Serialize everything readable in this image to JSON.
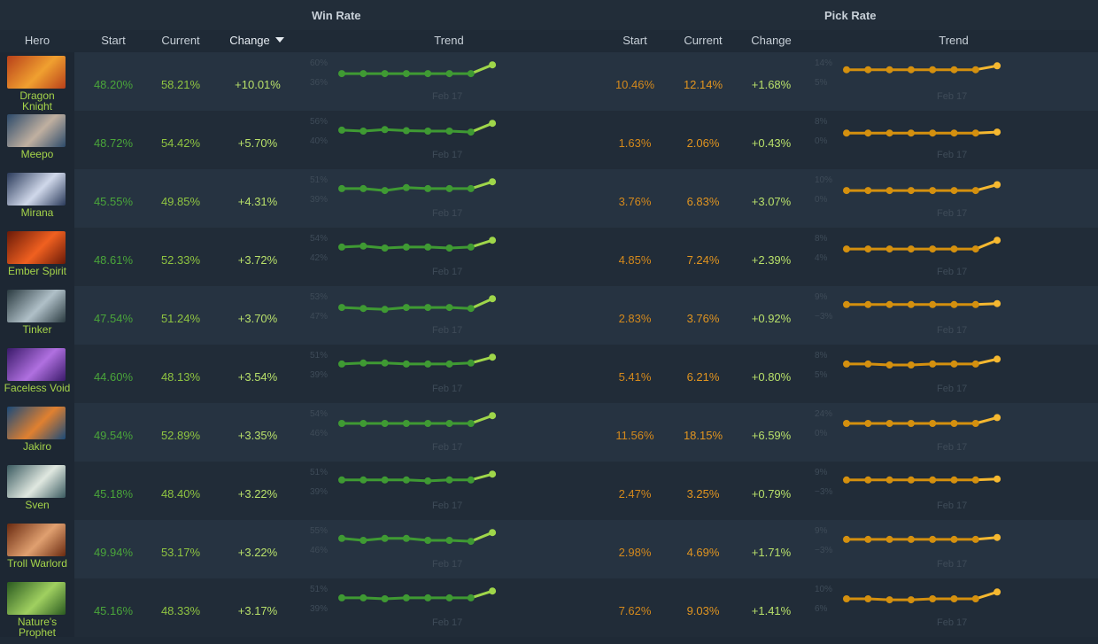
{
  "headers": {
    "group_win": "Win Rate",
    "group_pick": "Pick Rate",
    "hero": "Hero",
    "start": "Start",
    "current": "Current",
    "change": "Change",
    "trend": "Trend"
  },
  "colors": {
    "background": "#1f2a36",
    "win_line": "#3f9a33",
    "win_highlight": "#9fd64a",
    "pick_line": "#d4900f",
    "pick_highlight": "#f5b830",
    "positive_change": "#b8e06a"
  },
  "trend_date": "Feb 17",
  "rows": [
    {
      "hero": "Dragon Knight",
      "hero_lines": [
        "Dragon",
        "Knight"
      ],
      "icon": "dragon-knight-portrait",
      "win": {
        "start": "48.20%",
        "current": "58.21%",
        "change": "+10.01%",
        "max": "60%",
        "min": "36%",
        "points": [
          0.55,
          0.55,
          0.55,
          0.55,
          0.55,
          0.55,
          0.55,
          0.1
        ]
      },
      "pick": {
        "start": "10.46%",
        "current": "12.14%",
        "change": "+1.68%",
        "max": "14%",
        "min": "5%",
        "points": [
          0.35,
          0.35,
          0.35,
          0.35,
          0.35,
          0.35,
          0.35,
          0.15
        ]
      }
    },
    {
      "hero": "Meepo",
      "hero_lines": [
        "Meepo"
      ],
      "icon": "meepo-portrait",
      "win": {
        "start": "48.72%",
        "current": "54.42%",
        "change": "+5.70%",
        "max": "56%",
        "min": "40%",
        "points": [
          0.45,
          0.5,
          0.42,
          0.48,
          0.5,
          0.5,
          0.55,
          0.1
        ]
      },
      "pick": {
        "start": "1.63%",
        "current": "2.06%",
        "change": "+0.43%",
        "max": "8%",
        "min": "0%",
        "points": [
          0.6,
          0.6,
          0.6,
          0.6,
          0.6,
          0.6,
          0.6,
          0.55
        ]
      }
    },
    {
      "hero": "Mirana",
      "hero_lines": [
        "Mirana"
      ],
      "icon": "mirana-portrait",
      "win": {
        "start": "45.55%",
        "current": "49.85%",
        "change": "+4.31%",
        "max": "51%",
        "min": "39%",
        "points": [
          0.45,
          0.45,
          0.55,
          0.4,
          0.45,
          0.45,
          0.45,
          0.1
        ]
      },
      "pick": {
        "start": "3.76%",
        "current": "6.83%",
        "change": "+3.07%",
        "max": "10%",
        "min": "0%",
        "points": [
          0.55,
          0.55,
          0.55,
          0.55,
          0.55,
          0.55,
          0.55,
          0.25
        ]
      }
    },
    {
      "hero": "Ember Spirit",
      "hero_lines": [
        "Ember Spirit"
      ],
      "icon": "ember-spirit-portrait",
      "win": {
        "start": "48.61%",
        "current": "52.33%",
        "change": "+3.72%",
        "max": "54%",
        "min": "42%",
        "points": [
          0.45,
          0.4,
          0.5,
          0.45,
          0.45,
          0.5,
          0.45,
          0.1
        ]
      },
      "pick": {
        "start": "4.85%",
        "current": "7.24%",
        "change": "+2.39%",
        "max": "8%",
        "min": "4%",
        "points": [
          0.55,
          0.55,
          0.55,
          0.55,
          0.55,
          0.55,
          0.55,
          0.1
        ]
      }
    },
    {
      "hero": "Tinker",
      "hero_lines": [
        "Tinker"
      ],
      "icon": "tinker-portrait",
      "win": {
        "start": "47.54%",
        "current": "51.24%",
        "change": "+3.70%",
        "max": "53%",
        "min": "47%",
        "points": [
          0.55,
          0.6,
          0.65,
          0.55,
          0.55,
          0.55,
          0.6,
          0.1
        ]
      },
      "pick": {
        "start": "2.83%",
        "current": "3.76%",
        "change": "+0.92%",
        "max": "9%",
        "min": "−3%",
        "points": [
          0.4,
          0.4,
          0.4,
          0.4,
          0.4,
          0.4,
          0.4,
          0.35
        ]
      }
    },
    {
      "hero": "Faceless Void",
      "hero_lines": [
        "Faceless Void"
      ],
      "icon": "faceless-void-portrait",
      "win": {
        "start": "44.60%",
        "current": "48.13%",
        "change": "+3.54%",
        "max": "51%",
        "min": "39%",
        "points": [
          0.45,
          0.4,
          0.4,
          0.45,
          0.45,
          0.45,
          0.4,
          0.1
        ]
      },
      "pick": {
        "start": "5.41%",
        "current": "6.21%",
        "change": "+0.80%",
        "max": "8%",
        "min": "5%",
        "points": [
          0.45,
          0.45,
          0.5,
          0.5,
          0.45,
          0.45,
          0.45,
          0.2
        ]
      }
    },
    {
      "hero": "Jakiro",
      "hero_lines": [
        "Jakiro"
      ],
      "icon": "jakiro-portrait",
      "win": {
        "start": "49.54%",
        "current": "52.89%",
        "change": "+3.35%",
        "max": "54%",
        "min": "46%",
        "points": [
          0.5,
          0.5,
          0.5,
          0.5,
          0.5,
          0.5,
          0.5,
          0.1
        ]
      },
      "pick": {
        "start": "11.56%",
        "current": "18.15%",
        "change": "+6.59%",
        "max": "24%",
        "min": "0%",
        "points": [
          0.5,
          0.5,
          0.5,
          0.5,
          0.5,
          0.5,
          0.5,
          0.2
        ]
      }
    },
    {
      "hero": "Sven",
      "hero_lines": [
        "Sven"
      ],
      "icon": "sven-portrait",
      "win": {
        "start": "45.18%",
        "current": "48.40%",
        "change": "+3.22%",
        "max": "51%",
        "min": "39%",
        "points": [
          0.4,
          0.4,
          0.4,
          0.4,
          0.45,
          0.4,
          0.4,
          0.1
        ]
      },
      "pick": {
        "start": "2.47%",
        "current": "3.25%",
        "change": "+0.79%",
        "max": "9%",
        "min": "−3%",
        "points": [
          0.4,
          0.4,
          0.4,
          0.4,
          0.4,
          0.4,
          0.4,
          0.35
        ]
      }
    },
    {
      "hero": "Troll Warlord",
      "hero_lines": [
        "Troll Warlord"
      ],
      "icon": "troll-warlord-portrait",
      "win": {
        "start": "49.94%",
        "current": "53.17%",
        "change": "+3.22%",
        "max": "55%",
        "min": "46%",
        "points": [
          0.4,
          0.5,
          0.4,
          0.4,
          0.5,
          0.5,
          0.55,
          0.1
        ]
      },
      "pick": {
        "start": "2.98%",
        "current": "4.69%",
        "change": "+1.71%",
        "max": "9%",
        "min": "−3%",
        "points": [
          0.45,
          0.45,
          0.45,
          0.45,
          0.45,
          0.45,
          0.45,
          0.35
        ]
      }
    },
    {
      "hero": "Nature's Prophet",
      "hero_lines": [
        "Nature's",
        "Prophet"
      ],
      "icon": "natures-prophet-portrait",
      "win": {
        "start": "45.16%",
        "current": "48.33%",
        "change": "+3.17%",
        "max": "51%",
        "min": "39%",
        "points": [
          0.45,
          0.45,
          0.5,
          0.45,
          0.45,
          0.45,
          0.45,
          0.1
        ]
      },
      "pick": {
        "start": "7.62%",
        "current": "9.03%",
        "change": "+1.41%",
        "max": "10%",
        "min": "6%",
        "points": [
          0.5,
          0.5,
          0.55,
          0.55,
          0.5,
          0.5,
          0.5,
          0.15
        ]
      }
    }
  ]
}
